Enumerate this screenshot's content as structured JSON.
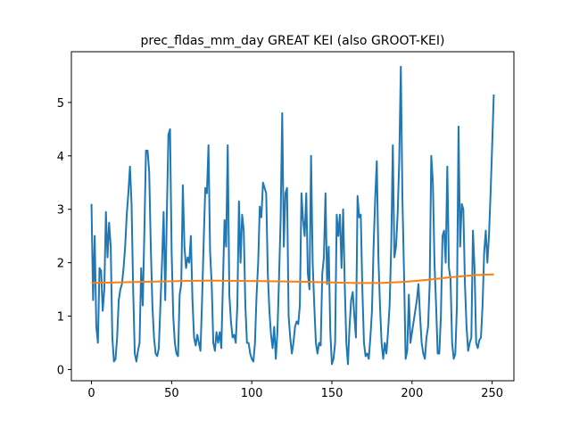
{
  "chart_data": {
    "type": "line",
    "title": "prec_fldas_mm_day GREAT KEI (also GROOT-KEI)",
    "x": [
      0,
      1,
      2,
      3,
      4,
      5,
      6,
      7,
      8,
      9,
      10,
      11,
      12,
      13,
      14,
      15,
      16,
      17,
      18,
      19,
      20,
      21,
      22,
      23,
      24,
      25,
      26,
      27,
      28,
      29,
      30,
      31,
      32,
      33,
      34,
      35,
      36,
      37,
      38,
      39,
      40,
      41,
      42,
      43,
      44,
      45,
      46,
      47,
      48,
      49,
      50,
      51,
      52,
      53,
      54,
      55,
      56,
      57,
      58,
      59,
      60,
      61,
      62,
      63,
      64,
      65,
      66,
      67,
      68,
      69,
      70,
      71,
      72,
      73,
      74,
      75,
      76,
      77,
      78,
      79,
      80,
      81,
      82,
      83,
      84,
      85,
      86,
      87,
      88,
      89,
      90,
      91,
      92,
      93,
      94,
      95,
      96,
      97,
      98,
      99,
      100,
      101,
      102,
      103,
      104,
      105,
      106,
      107,
      108,
      109,
      110,
      111,
      112,
      113,
      114,
      115,
      116,
      117,
      118,
      119,
      120,
      121,
      122,
      123,
      124,
      125,
      126,
      127,
      128,
      129,
      130,
      131,
      132,
      133,
      134,
      135,
      136,
      137,
      138,
      139,
      140,
      141,
      142,
      143,
      144,
      145,
      146,
      147,
      148,
      149,
      150,
      151,
      152,
      153,
      154,
      155,
      156,
      157,
      158,
      159,
      160,
      161,
      162,
      163,
      164,
      165,
      166,
      167,
      168,
      169,
      170,
      171,
      172,
      173,
      174,
      175,
      176,
      177,
      178,
      179,
      180,
      181,
      182,
      183,
      184,
      185,
      186,
      187,
      188,
      189,
      190,
      191,
      192,
      193,
      194,
      195,
      196,
      197,
      198,
      199,
      200,
      201,
      202,
      203,
      204,
      205,
      206,
      207,
      208,
      209,
      210,
      211,
      212,
      213,
      214,
      215,
      216,
      217,
      218,
      219,
      220,
      221,
      222,
      223,
      224,
      225,
      226,
      227,
      228,
      229,
      230,
      231,
      232,
      233,
      234,
      235,
      236,
      237,
      238,
      239,
      240,
      241,
      242,
      243,
      244,
      245,
      246,
      247,
      248,
      249,
      250,
      251
    ],
    "series": [
      {
        "color": "#1f77b4",
        "values": [
          3.1,
          1.3,
          2.5,
          0.8,
          0.5,
          1.9,
          1.85,
          1.1,
          1.5,
          2.95,
          2.1,
          2.75,
          2.3,
          0.6,
          0.15,
          0.2,
          0.6,
          1.3,
          1.5,
          1.6,
          1.9,
          2.3,
          2.9,
          3.3,
          3.8,
          3.1,
          1.5,
          0.3,
          0.15,
          0.35,
          0.5,
          1.9,
          1.2,
          2.6,
          4.1,
          4.1,
          3.7,
          2.3,
          1.2,
          0.6,
          0.3,
          0.25,
          0.4,
          1.2,
          2.0,
          2.95,
          1.3,
          2.9,
          4.4,
          4.5,
          2.2,
          1.0,
          0.5,
          0.3,
          0.25,
          1.4,
          1.6,
          3.45,
          2.3,
          1.9,
          2.1,
          2.0,
          2.5,
          1.3,
          0.6,
          0.45,
          0.65,
          0.5,
          0.35,
          1.3,
          2.4,
          3.4,
          3.3,
          4.2,
          2.2,
          1.6,
          0.5,
          0.35,
          0.7,
          0.5,
          0.7,
          0.4,
          1.6,
          2.8,
          2.3,
          4.2,
          1.4,
          0.9,
          0.6,
          0.65,
          0.5,
          1.2,
          3.15,
          2.0,
          2.9,
          2.6,
          1.2,
          0.5,
          0.5,
          0.3,
          0.2,
          0.15,
          0.5,
          1.4,
          2.0,
          3.05,
          2.85,
          3.5,
          3.4,
          3.3,
          1.8,
          1.1,
          0.65,
          0.4,
          0.8,
          0.2,
          0.7,
          1.7,
          2.8,
          4.8,
          2.3,
          3.3,
          3.4,
          1.0,
          0.6,
          0.3,
          0.5,
          0.8,
          0.9,
          0.85,
          1.2,
          3.3,
          2.8,
          2.5,
          3.3,
          1.8,
          1.5,
          4.0,
          2.0,
          1.2,
          0.5,
          0.3,
          0.5,
          0.45,
          1.8,
          2.1,
          3.3,
          1.6,
          2.3,
          0.7,
          0.1,
          0.2,
          0.5,
          2.9,
          2.5,
          2.9,
          1.9,
          3.0,
          1.6,
          0.5,
          0.1,
          0.8,
          1.3,
          1.45,
          1.0,
          0.6,
          3.25,
          2.85,
          2.9,
          1.5,
          0.5,
          0.25,
          0.3,
          0.2,
          0.6,
          1.1,
          2.3,
          3.2,
          3.9,
          2.1,
          1.2,
          0.5,
          0.2,
          0.5,
          0.3,
          0.7,
          1.2,
          2.3,
          4.2,
          2.1,
          2.3,
          2.9,
          3.9,
          5.67,
          3.2,
          1.8,
          0.2,
          0.35,
          1.4,
          0.5,
          0.7,
          0.9,
          1.1,
          1.3,
          1.6,
          1.0,
          0.5,
          0.3,
          0.2,
          0.6,
          0.8,
          1.6,
          4.0,
          3.5,
          2.0,
          1.2,
          0.3,
          0.3,
          1.0,
          2.5,
          2.6,
          2.0,
          3.8,
          1.9,
          1.7,
          0.5,
          0.2,
          0.3,
          1.2,
          4.55,
          2.3,
          3.1,
          3.0,
          1.6,
          0.8,
          0.35,
          0.5,
          0.6,
          2.6,
          1.9,
          0.5,
          0.4,
          0.55,
          0.6,
          1.2,
          2.2,
          2.6,
          2.0,
          2.5,
          3.3,
          4.2,
          5.15
        ]
      },
      {
        "color": "#ff7f0e",
        "x": [
          0,
          15,
          30,
          45,
          60,
          75,
          90,
          105,
          120,
          135,
          150,
          165,
          180,
          195,
          210,
          225,
          240,
          251
        ],
        "values": [
          1.62,
          1.63,
          1.64,
          1.65,
          1.66,
          1.665,
          1.66,
          1.655,
          1.65,
          1.64,
          1.63,
          1.62,
          1.62,
          1.64,
          1.68,
          1.73,
          1.77,
          1.78
        ]
      }
    ],
    "xlim": [
      -12.55,
      263.55
    ],
    "ylim": [
      -0.21,
      5.95
    ],
    "xticks": [
      0,
      50,
      100,
      150,
      200,
      250
    ],
    "yticks": [
      0,
      1,
      2,
      3,
      4,
      5
    ]
  }
}
